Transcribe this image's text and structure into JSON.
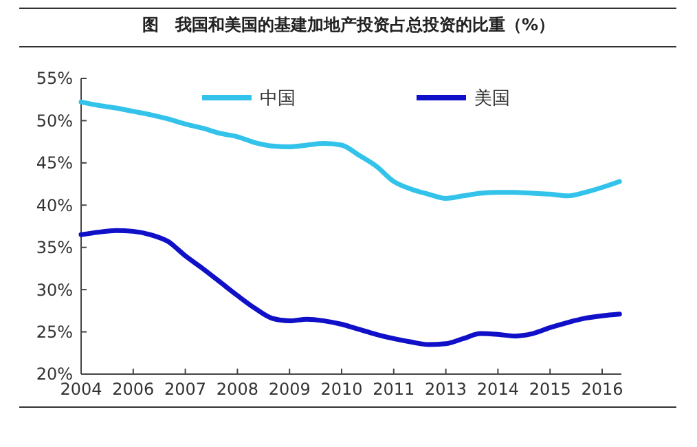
{
  "chart_data": {
    "type": "line",
    "title": "图　我国和美国的基建加地产投资占总投资的比重（%）",
    "categories": [
      "2004",
      null,
      null,
      "2006",
      null,
      null,
      "2007",
      null,
      null,
      "2008",
      null,
      null,
      "2009",
      null,
      null,
      "2010",
      null,
      null,
      "2011",
      null,
      null,
      "2013",
      null,
      null,
      "2014",
      null,
      null,
      "2015",
      null,
      null,
      "2016",
      null
    ],
    "series": [
      {
        "name": "中国",
        "color": "#33c3ea",
        "values": [
          52.2,
          51.8,
          51.5,
          51.1,
          50.7,
          50.2,
          49.6,
          49.1,
          48.5,
          48.1,
          47.4,
          47.0,
          46.9,
          47.1,
          47.3,
          47.1,
          45.9,
          44.6,
          42.8,
          41.9,
          41.3,
          40.8,
          41.1,
          41.4,
          41.5,
          41.5,
          41.4,
          41.3,
          41.1,
          41.5,
          42.1,
          42.8
        ]
      },
      {
        "name": "美国",
        "color": "#1010c8",
        "values": [
          36.5,
          36.8,
          37.0,
          36.9,
          36.5,
          35.7,
          34.0,
          32.5,
          30.9,
          29.3,
          27.8,
          26.6,
          26.3,
          26.5,
          26.3,
          25.9,
          25.3,
          24.7,
          24.2,
          23.8,
          23.5,
          23.6,
          24.2,
          24.8,
          24.7,
          24.5,
          24.8,
          25.5,
          26.1,
          26.6,
          26.9,
          27.1
        ]
      }
    ],
    "ylim": [
      20,
      55
    ],
    "yticks": [
      {
        "value": 20,
        "label": "20%"
      },
      {
        "value": 25,
        "label": "25%"
      },
      {
        "value": 30,
        "label": "30%"
      },
      {
        "value": 35,
        "label": "35%"
      },
      {
        "value": 40,
        "label": "40%"
      },
      {
        "value": 45,
        "label": "45%"
      },
      {
        "value": 50,
        "label": "50%"
      },
      {
        "value": 55,
        "label": "55%"
      }
    ],
    "grid": false,
    "legend": "top",
    "marker": "none",
    "line_style": "solid"
  }
}
